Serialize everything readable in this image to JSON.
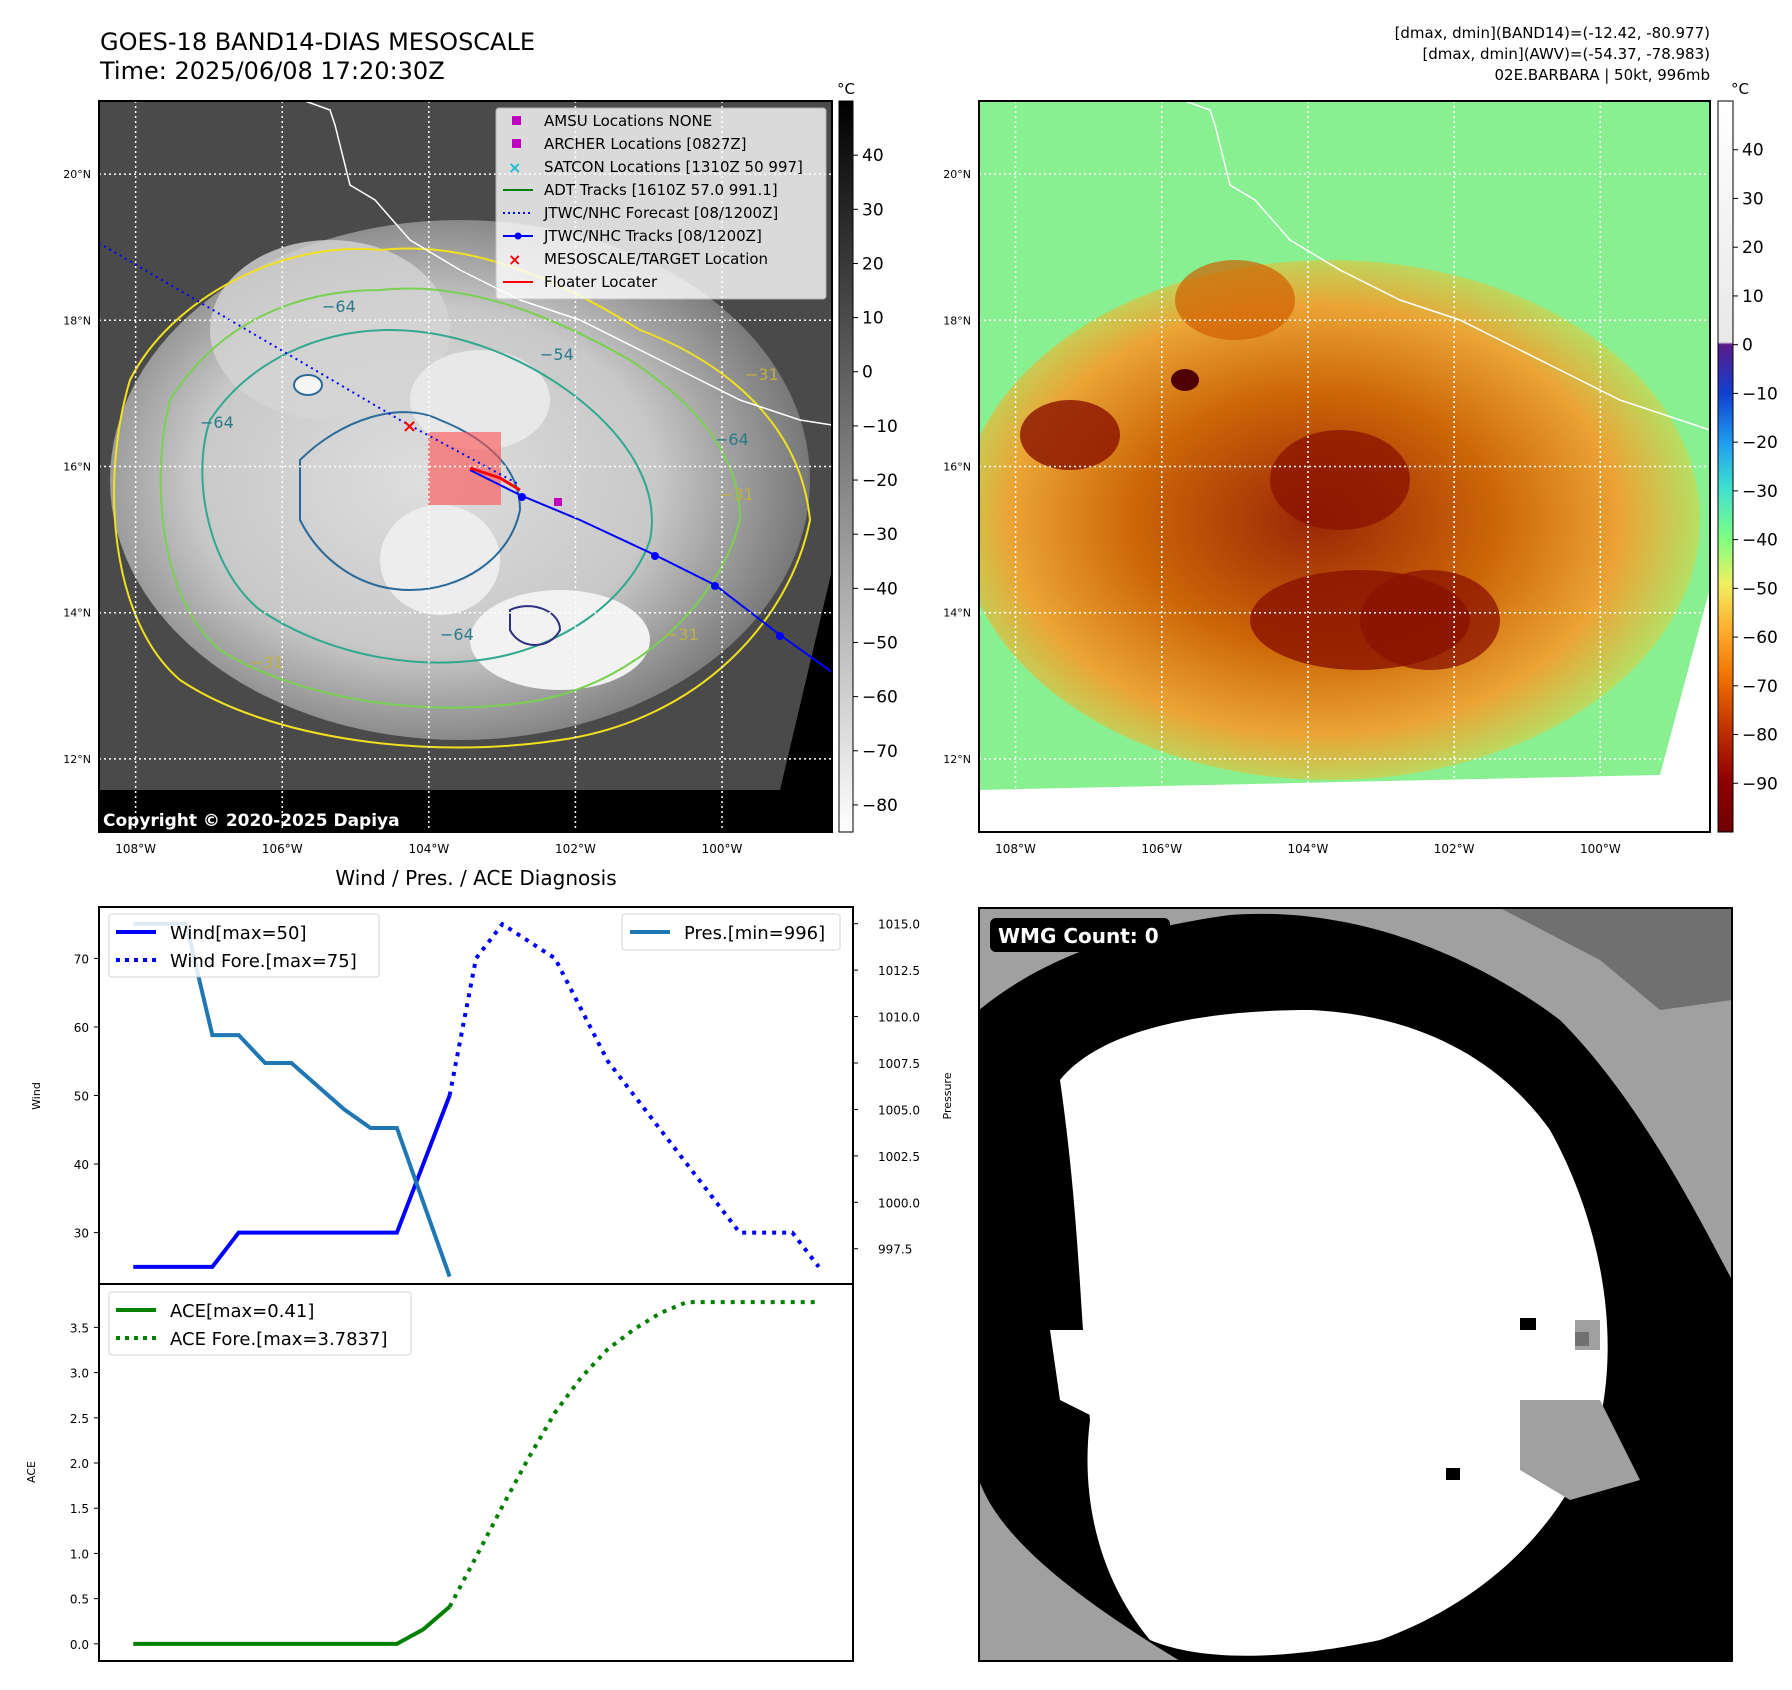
{
  "header": {
    "title_line1": "GOES-18 BAND14-DIAS MESOSCALE",
    "title_line2": "Time: 2025/06/08 17:20:30Z",
    "info_line1": "[dmax, dmin](BAND14)=(-12.42, -80.977)",
    "info_line2": "[dmax, dmin](AWV)=(-54.37, -78.983)",
    "info_line3": "02E.BARBARA | 50kt, 996mb"
  },
  "copyright": "Copyright © 2020-2025 Dapiya",
  "map_axes": {
    "lon_ticks": [
      "108°W",
      "106°W",
      "104°W",
      "102°W",
      "100°W"
    ],
    "lat_ticks": [
      "20°N",
      "18°N",
      "16°N",
      "14°N",
      "12°N"
    ],
    "lon_values": [
      -108,
      -106,
      -104,
      -102,
      -100
    ],
    "lat_values": [
      20,
      18,
      16,
      14,
      12
    ],
    "lon_range": [
      -108.5,
      -98.5
    ],
    "lat_range": [
      11.0,
      21.0
    ]
  },
  "colorbar_ir": {
    "unit": "°C",
    "ticks": [
      "40",
      "30",
      "20",
      "10",
      "0",
      "−10",
      "−20",
      "−30",
      "−40",
      "−50",
      "−60",
      "−70",
      "−80"
    ],
    "values": [
      40,
      30,
      20,
      10,
      0,
      -10,
      -20,
      -30,
      -40,
      -50,
      -60,
      -70,
      -80
    ],
    "range": [
      -85,
      50
    ]
  },
  "colorbar_color": {
    "unit": "°C",
    "ticks": [
      "40",
      "30",
      "20",
      "10",
      "0",
      "−10",
      "−20",
      "−30",
      "−40",
      "−50",
      "−60",
      "−70",
      "−80",
      "−90"
    ],
    "values": [
      40,
      30,
      20,
      10,
      0,
      -10,
      -20,
      -30,
      -40,
      -50,
      -60,
      -70,
      -80,
      -90
    ],
    "range": [
      -100,
      50
    ]
  },
  "map_legend": [
    {
      "label": "AMSU Locations NONE",
      "marker": "square",
      "color": "#bf00bf"
    },
    {
      "label": "ARCHER Locations [0827Z]",
      "marker": "square",
      "color": "#bf00bf"
    },
    {
      "label": "SATCON Locations [1310Z 50 997]",
      "marker": "x",
      "color": "#17becf"
    },
    {
      "label": "ADT Tracks [1610Z 57.0 991.1]",
      "marker": "line",
      "color": "#008000"
    },
    {
      "label": "JTWC/NHC Forecast [08/1200Z]",
      "marker": "dotted",
      "color": "#0000ff"
    },
    {
      "label": "JTWC/NHC Tracks [08/1200Z]",
      "marker": "line-dot",
      "color": "#0000ff"
    },
    {
      "label": "MESOSCALE/TARGET Location",
      "marker": "x",
      "color": "#ff0000"
    },
    {
      "label": "Floater Locater",
      "marker": "line",
      "color": "#ff0000"
    }
  ],
  "contour_labels": [
    "−64",
    "−64",
    "−64",
    "−31",
    "−31",
    "−31",
    "−64",
    "−31",
    "−54"
  ],
  "chart_data": [
    {
      "type": "line",
      "title": "Wind / Pres. / ACE Diagnosis",
      "ylabel": "Wind",
      "y2label": "Pressure",
      "x": [
        0,
        1,
        2,
        3,
        4,
        5,
        6,
        7,
        8,
        9,
        10,
        11,
        12,
        13,
        14,
        15,
        16,
        17,
        18,
        19,
        20,
        21,
        22,
        23,
        24,
        25,
        26
      ],
      "series": [
        {
          "name": "Wind[max=50]",
          "axis": "left",
          "color": "#0000ff",
          "style": "solid",
          "x": [
            0,
            1,
            2,
            3,
            4,
            5,
            6,
            7,
            8,
            9,
            10,
            11,
            12
          ],
          "values": [
            25,
            25,
            25,
            25,
            30,
            30,
            30,
            30,
            30,
            30,
            30,
            40,
            50
          ]
        },
        {
          "name": "Wind Fore.[max=75]",
          "axis": "left",
          "color": "#0000ff",
          "style": "dotted",
          "x": [
            12,
            13,
            14,
            15,
            16,
            17,
            18,
            19,
            20,
            21,
            22,
            23,
            24,
            25,
            26
          ],
          "values": [
            50,
            70,
            75,
            72.5,
            70,
            62.5,
            55,
            50,
            45,
            40,
            35,
            30,
            30,
            30,
            25
          ]
        },
        {
          "name": "Pres.[min=996]",
          "axis": "right",
          "color": "#1f77b4",
          "style": "solid",
          "x": [
            0,
            1,
            2,
            3,
            4,
            5,
            6,
            7,
            8,
            9,
            10,
            11,
            12
          ],
          "values": [
            1015,
            1015,
            1015,
            1009,
            1009,
            1007.5,
            1007.5,
            1006.25,
            1005,
            1004,
            1004,
            1000,
            996
          ]
        }
      ],
      "yticks": [
        "30",
        "40",
        "50",
        "60",
        "70"
      ],
      "ytick_values": [
        30,
        40,
        50,
        60,
        70
      ],
      "y2ticks": [
        "997.5",
        "1000.0",
        "1002.5",
        "1005.0",
        "1007.5",
        "1010.0",
        "1012.5",
        "1015.0"
      ],
      "y2tick_values": [
        997.5,
        1000,
        1002.5,
        1005,
        1007.5,
        1010,
        1012.5,
        1015
      ],
      "ylim": [
        22.5,
        77.5
      ],
      "y2lim": [
        995.6,
        1015.9
      ],
      "xlim": [
        -1.3,
        27.3
      ],
      "legend": "top-left / top-right"
    },
    {
      "type": "line",
      "ylabel": "ACE",
      "x": [
        0,
        1,
        2,
        3,
        4,
        5,
        6,
        7,
        8,
        9,
        10,
        11,
        12,
        13,
        14,
        15,
        16,
        17,
        18,
        19,
        20,
        21,
        22,
        23,
        24,
        25,
        26
      ],
      "series": [
        {
          "name": "ACE[max=0.41]",
          "color": "#008000",
          "style": "solid",
          "x": [
            0,
            1,
            2,
            3,
            4,
            5,
            6,
            7,
            8,
            9,
            10,
            11,
            12
          ],
          "values": [
            0,
            0,
            0,
            0,
            0,
            0,
            0,
            0,
            0,
            0,
            0,
            0.16,
            0.41
          ]
        },
        {
          "name": "ACE Fore.[max=3.7837]",
          "color": "#008000",
          "style": "dotted",
          "x": [
            12,
            13,
            14,
            15,
            16,
            17,
            18,
            19,
            20,
            21,
            22,
            23,
            24,
            25,
            26
          ],
          "values": [
            0.41,
            0.96,
            1.52,
            2.06,
            2.56,
            2.95,
            3.26,
            3.48,
            3.66,
            3.78,
            3.78,
            3.78,
            3.78,
            3.78,
            3.78
          ]
        }
      ],
      "yticks": [
        "0.0",
        "0.5",
        "1.0",
        "1.5",
        "2.0",
        "2.5",
        "3.0",
        "3.5"
      ],
      "ytick_values": [
        0,
        0.5,
        1.0,
        1.5,
        2.0,
        2.5,
        3.0,
        3.5
      ],
      "ylim": [
        -0.19,
        3.98
      ],
      "xlim": [
        -1.3,
        27.3
      ],
      "legend": "top-left"
    }
  ],
  "wmg": {
    "label": "WMG Count: 0",
    "colors": {
      "black": "#000000",
      "white": "#ffffff",
      "gray": "#a0a0a0",
      "dark_gray": "#707070"
    }
  }
}
